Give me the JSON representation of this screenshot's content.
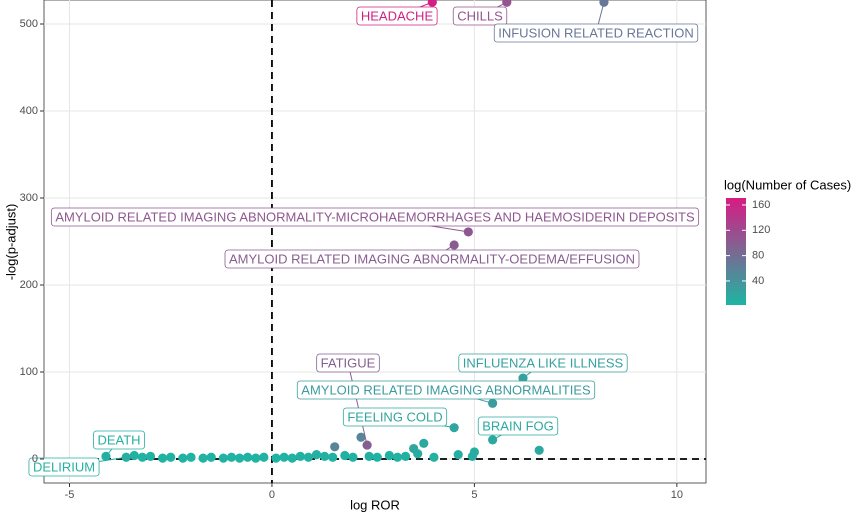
{
  "chart_data": {
    "type": "scatter",
    "x_label": "log ROR",
    "y_label": "-log(p-adjust)",
    "xlim": [
      -5.63,
      10.72
    ],
    "ylim": [
      -27.6,
      527.6
    ],
    "xticks": [
      -5,
      0,
      5,
      10
    ],
    "yticks": [
      0,
      100,
      200,
      300,
      400,
      500
    ],
    "grid": true,
    "reference_lines": {
      "x": 0,
      "y": 0
    },
    "color_scale": {
      "title": "log(Number of Cases)",
      "low": "#1db5a3",
      "high": "#d81b84",
      "limits": [
        2,
        171
      ],
      "ticks": [
        40,
        80,
        120,
        160
      ]
    },
    "points": [
      {
        "x": 3.96,
        "y": 525,
        "cases": 165,
        "label": "HEADACHE"
      },
      {
        "x": 5.8,
        "y": 525,
        "cases": 110,
        "label": "CHILLS"
      },
      {
        "x": 8.2,
        "y": 525,
        "cases": 70,
        "label": "INFUSION RELATED REACTION"
      },
      {
        "x": 4.85,
        "y": 261,
        "cases": 105,
        "label": "AMYLOID RELATED IMAGING ABNORMALITY-MICROHAEMORRHAGES AND HAEMOSIDERIN DEPOSITS"
      },
      {
        "x": 4.5,
        "y": 246,
        "cases": 100,
        "label": "AMYLOID RELATED IMAGING ABNORMALITY-OEDEMA/EFFUSION"
      },
      {
        "x": 2.35,
        "y": 16,
        "cases": 95,
        "label": "FATIGUE"
      },
      {
        "x": 6.2,
        "y": 93,
        "cases": 25,
        "label": "INFLUENZA LIKE ILLNESS"
      },
      {
        "x": 5.45,
        "y": 64,
        "cases": 30,
        "label": "AMYLOID RELATED IMAGING ABNORMALITIES"
      },
      {
        "x": 4.5,
        "y": 36,
        "cases": 20,
        "label": "FEELING COLD"
      },
      {
        "x": 5.45,
        "y": 22,
        "cases": 15,
        "label": "BRAIN FOG"
      },
      {
        "x": -4.1,
        "y": 3,
        "cases": 10,
        "label": "DEATH"
      },
      {
        "x": -3.6,
        "y": 2,
        "cases": 8,
        "label": "DELIRIUM"
      },
      {
        "x": 1.55,
        "y": 14,
        "cases": 55
      },
      {
        "x": 2.2,
        "y": 25,
        "cases": 55
      },
      {
        "x": 3.5,
        "y": 12,
        "cases": 20
      },
      {
        "x": 3.75,
        "y": 18,
        "cases": 15
      },
      {
        "x": 3.6,
        "y": 6,
        "cases": 12
      },
      {
        "x": 4.6,
        "y": 5,
        "cases": 10
      },
      {
        "x": 4.95,
        "y": 3,
        "cases": 10
      },
      {
        "x": 5.0,
        "y": 8,
        "cases": 12
      },
      {
        "x": 6.6,
        "y": 10,
        "cases": 15
      },
      {
        "x": 4.0,
        "y": 2,
        "cases": 8
      },
      {
        "x": -3.4,
        "y": 4,
        "cases": 6
      },
      {
        "x": -3.2,
        "y": 2,
        "cases": 5
      },
      {
        "x": -3.0,
        "y": 3,
        "cases": 5
      },
      {
        "x": -2.7,
        "y": 1,
        "cases": 5
      },
      {
        "x": -2.5,
        "y": 2,
        "cases": 5
      },
      {
        "x": -2.2,
        "y": 1,
        "cases": 5
      },
      {
        "x": -2.0,
        "y": 2,
        "cases": 5
      },
      {
        "x": -1.7,
        "y": 1,
        "cases": 5
      },
      {
        "x": -1.5,
        "y": 2,
        "cases": 5
      },
      {
        "x": -1.2,
        "y": 1,
        "cases": 5
      },
      {
        "x": -1.0,
        "y": 2,
        "cases": 5
      },
      {
        "x": -0.8,
        "y": 1,
        "cases": 5
      },
      {
        "x": -0.6,
        "y": 2,
        "cases": 5
      },
      {
        "x": -0.4,
        "y": 1,
        "cases": 5
      },
      {
        "x": -0.2,
        "y": 2,
        "cases": 5
      },
      {
        "x": 0.1,
        "y": 1,
        "cases": 5
      },
      {
        "x": 0.3,
        "y": 2,
        "cases": 5
      },
      {
        "x": 0.5,
        "y": 1,
        "cases": 5
      },
      {
        "x": 0.7,
        "y": 3,
        "cases": 6
      },
      {
        "x": 0.9,
        "y": 2,
        "cases": 5
      },
      {
        "x": 1.1,
        "y": 5,
        "cases": 8
      },
      {
        "x": 1.3,
        "y": 3,
        "cases": 6
      },
      {
        "x": 1.5,
        "y": 2,
        "cases": 5
      },
      {
        "x": 1.8,
        "y": 4,
        "cases": 6
      },
      {
        "x": 2.0,
        "y": 2,
        "cases": 5
      },
      {
        "x": 2.4,
        "y": 3,
        "cases": 6
      },
      {
        "x": 2.6,
        "y": 2,
        "cases": 5
      },
      {
        "x": 2.9,
        "y": 4,
        "cases": 6
      },
      {
        "x": 3.1,
        "y": 2,
        "cases": 5
      },
      {
        "x": 3.3,
        "y": 3,
        "cases": 6
      }
    ]
  }
}
